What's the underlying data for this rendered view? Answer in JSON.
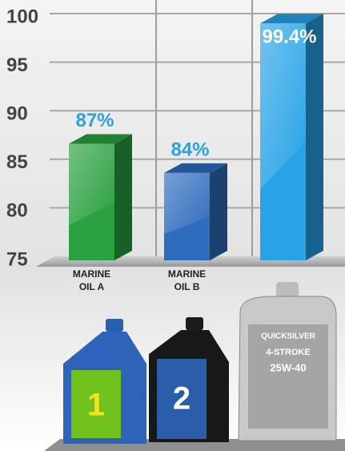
{
  "chart_data": {
    "type": "bar3d",
    "categories": [
      "MARINE OIL A",
      "MARINE OIL B",
      null
    ],
    "values": [
      87,
      84,
      99.4
    ],
    "value_labels": [
      "87%",
      "84%",
      "99.4%"
    ],
    "colors": [
      "#2aa040",
      "#2e6cbd",
      "#27a3e6"
    ],
    "ylim": [
      75,
      100
    ],
    "yticks": [
      75,
      80,
      85,
      90,
      95,
      100
    ],
    "grid": true
  },
  "bottles": {
    "labels": [
      "1",
      "2"
    ],
    "product": [
      "QUICKSILVER",
      "4-STROKE",
      "25W-40"
    ]
  }
}
